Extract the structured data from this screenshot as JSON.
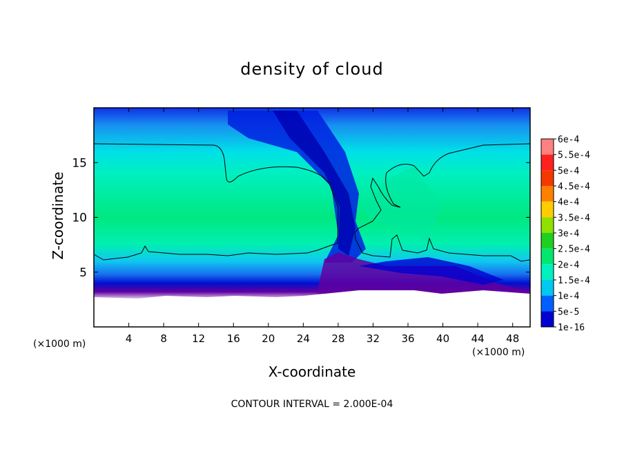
{
  "chart_data": {
    "type": "heatmap",
    "title": "density of cloud",
    "xlabel": "X-coordinate",
    "ylabel": "Z-coordinate",
    "x_unit": "(×1000 m)",
    "y_unit": "(×1000 m)",
    "xlim": [
      0,
      50
    ],
    "ylim": [
      0,
      20
    ],
    "x_ticks": [
      4,
      8,
      12,
      16,
      20,
      24,
      28,
      32,
      36,
      40,
      44,
      48
    ],
    "y_ticks": [
      5,
      10,
      15
    ],
    "footer": "CONTOUR INTERVAL = 2.000E-04",
    "colorbar": {
      "labels": [
        "6e-4",
        "5.5e-4",
        "5e-4",
        "4.5e-4",
        "4e-4",
        "3.5e-4",
        "3e-4",
        "2.5e-4",
        "2e-4",
        "1.5e-4",
        "1e-4",
        "5e-5",
        "1e-16"
      ],
      "colors": [
        "#ff8080",
        "#ff2020",
        "#f53800",
        "#ff8000",
        "#ffcc00",
        "#90e000",
        "#20d020",
        "#00e870",
        "#00f0c0",
        "#00c8f0",
        "#0060ff",
        "#0000d0",
        "#7000a0"
      ]
    }
  }
}
